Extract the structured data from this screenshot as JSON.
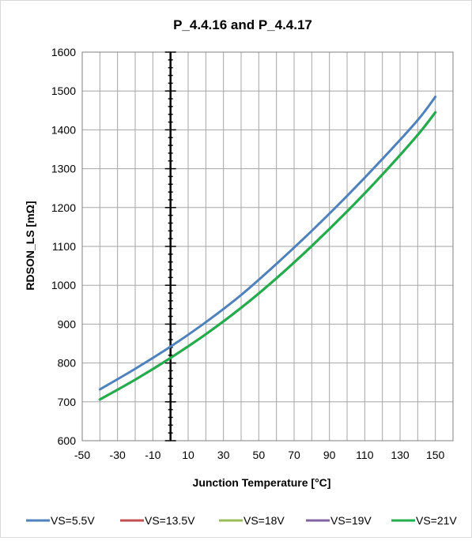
{
  "chart_data": {
    "type": "line",
    "title": "P_4.4.16 and P_4.4.17",
    "xlabel": "Junction Temperature  [°C]",
    "ylabel": "RDSON_LS [mΩ]",
    "xlim": [
      -50,
      160
    ],
    "ylim": [
      600,
      1600
    ],
    "xticks": [
      -50,
      -30,
      -10,
      10,
      30,
      50,
      70,
      90,
      110,
      130,
      150
    ],
    "yticks": [
      600,
      700,
      800,
      900,
      1000,
      1100,
      1200,
      1300,
      1400,
      1500,
      1600
    ],
    "grid": true,
    "legend_position": "bottom",
    "x": [
      -40,
      -20,
      0,
      20,
      40,
      60,
      80,
      100,
      120,
      140,
      150
    ],
    "series": [
      {
        "name": "VS=5.5V",
        "color": "#4f81bd",
        "values": [
          732,
          785,
          842,
          905,
          975,
          1055,
          1140,
          1230,
          1325,
          1425,
          1485
        ]
      },
      {
        "name": "VS=13.5V",
        "color": "#c0504d",
        "values": [
          706,
          757,
          813,
          874,
          942,
          1018,
          1101,
          1190,
          1285,
          1387,
          1445
        ]
      },
      {
        "name": "VS=18V",
        "color": "#9bbb59",
        "values": [
          706,
          757,
          813,
          874,
          942,
          1018,
          1101,
          1190,
          1285,
          1387,
          1445
        ]
      },
      {
        "name": "VS=19V",
        "color": "#8064a2",
        "values": [
          706,
          757,
          813,
          874,
          942,
          1018,
          1101,
          1190,
          1285,
          1387,
          1445
        ]
      },
      {
        "name": "VS=21V",
        "color": "#1faf4b",
        "values": [
          706,
          757,
          813,
          874,
          942,
          1018,
          1101,
          1190,
          1285,
          1387,
          1445
        ]
      }
    ]
  }
}
